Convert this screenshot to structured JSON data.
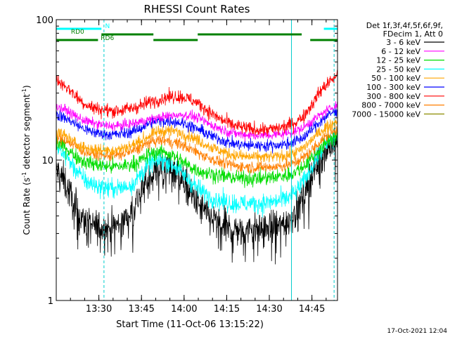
{
  "chart_data": {
    "type": "line",
    "title": "RHESSI Count Rates",
    "xlabel": "Start Time (11-Oct-06 13:15:22)",
    "ylabel_main": "Count Rate (s",
    "ylabel_sup1": "-1",
    "ylabel_mid": " detector segment",
    "ylabel_sup2": "-1",
    "ylabel_end": ")",
    "yscale": "log",
    "ylim": [
      1,
      100
    ],
    "y_ticks": [
      {
        "value": 1,
        "label": "1"
      },
      {
        "value": 10,
        "label": "10"
      },
      {
        "value": 100,
        "label": "100"
      }
    ],
    "x_range_minutes": [
      13.25,
      14.9
    ],
    "x_ticks": [
      {
        "value": 13.5,
        "label": "13:30"
      },
      {
        "value": 13.75,
        "label": "13:45"
      },
      {
        "value": 14.0,
        "label": "14:00"
      },
      {
        "value": 14.25,
        "label": "14:15"
      },
      {
        "value": 14.5,
        "label": "14:30"
      },
      {
        "value": 14.75,
        "label": "14:45"
      }
    ],
    "legend_header": [
      "Det 1f,3f,4f,5f,6f,9f,",
      "FDecim 1, Att 0"
    ],
    "timestamp": "17-Oct-2021 12:04",
    "time_hours": [
      13.25,
      13.3,
      13.35,
      13.4,
      13.45,
      13.5,
      13.55,
      13.6,
      13.65,
      13.7,
      13.75,
      13.8,
      13.85,
      13.9,
      13.95,
      14.0,
      14.05,
      14.1,
      14.15,
      14.2,
      14.25,
      14.3,
      14.35,
      14.4,
      14.45,
      14.5,
      14.55,
      14.6,
      14.65,
      14.7,
      14.75,
      14.8,
      14.85,
      14.9
    ],
    "series": [
      {
        "name": "3 - 6 keV",
        "color": "#000000",
        "noise": 0.09,
        "values": [
          8.5,
          7.0,
          5.0,
          3.8,
          3.4,
          3.3,
          3.3,
          3.4,
          3.7,
          4.5,
          6.0,
          7.8,
          8.8,
          9.0,
          8.5,
          7.0,
          5.5,
          4.5,
          3.9,
          3.5,
          3.3,
          3.2,
          3.2,
          3.2,
          3.2,
          3.3,
          3.4,
          3.6,
          4.2,
          5.5,
          8.0,
          10.5,
          12.5,
          14.0
        ]
      },
      {
        "name": "6 - 12 keV",
        "color": "#ff00ff",
        "noise": 0.025,
        "values": [
          24,
          23,
          21,
          19.5,
          18.5,
          18,
          17.5,
          17.5,
          17.8,
          18.2,
          18.8,
          19.5,
          20,
          20.5,
          21,
          21,
          20.5,
          19.5,
          18,
          17,
          16,
          15.5,
          15.2,
          15,
          15,
          15,
          15.2,
          15.5,
          16,
          17,
          19,
          21,
          23,
          25
        ]
      },
      {
        "name": "12 - 25 keV",
        "color": "#00dd00",
        "noise": 0.04,
        "values": [
          13.5,
          12.5,
          11,
          10,
          9.5,
          9.2,
          9.0,
          9.0,
          9.1,
          9.4,
          10,
          11,
          11.5,
          11.3,
          10.5,
          9.5,
          8.8,
          8.3,
          8.0,
          7.8,
          7.6,
          7.5,
          7.4,
          7.4,
          7.4,
          7.5,
          7.6,
          7.8,
          8.2,
          9.0,
          10.5,
          12,
          14,
          15
        ]
      },
      {
        "name": "25 - 50 keV",
        "color": "#00ffff",
        "noise": 0.05,
        "values": [
          12.5,
          11,
          9,
          7.5,
          6.8,
          6.5,
          6.3,
          6.3,
          6.4,
          6.8,
          8.0,
          9.5,
          10,
          9.8,
          9.0,
          7.8,
          6.8,
          6.0,
          5.5,
          5.2,
          5.0,
          4.9,
          4.9,
          4.9,
          4.9,
          5.0,
          5.1,
          5.3,
          5.8,
          7.0,
          9.0,
          11.5,
          13.5,
          15
        ]
      },
      {
        "name": "50 - 100 keV",
        "color": "#ffa500",
        "noise": 0.03,
        "values": [
          16,
          15,
          13.5,
          12.5,
          12,
          11.8,
          11.8,
          11.8,
          12.2,
          12.8,
          13.8,
          15,
          16,
          16.2,
          16,
          15.2,
          14.5,
          13.5,
          12.5,
          11.8,
          11.2,
          10.8,
          10.6,
          10.5,
          10.5,
          10.5,
          10.6,
          10.8,
          11.2,
          12.2,
          14,
          16,
          17.5,
          19
        ]
      },
      {
        "name": "100 - 300 keV",
        "color": "#0000ff",
        "noise": 0.03,
        "values": [
          21,
          20,
          18.5,
          17,
          16,
          15.5,
          15.2,
          15.2,
          15.5,
          16,
          17,
          18.5,
          19,
          19,
          18.8,
          18.2,
          17.2,
          16.2,
          15,
          14.2,
          13.5,
          13,
          12.8,
          12.7,
          12.7,
          12.7,
          12.8,
          13,
          13.5,
          14.5,
          16.5,
          19,
          21,
          23
        ]
      },
      {
        "name": "300 - 800 keV",
        "color": "#ff0000",
        "noise": 0.035,
        "values": [
          37,
          34,
          30,
          26,
          24,
          23,
          22.5,
          22.5,
          22.8,
          23.5,
          24.5,
          26,
          27,
          28,
          28.5,
          28,
          26.5,
          24.5,
          22,
          20,
          18.5,
          17.5,
          17,
          16.5,
          16.5,
          16.5,
          16.8,
          17.5,
          18.5,
          20.5,
          25,
          31,
          36,
          40
        ]
      },
      {
        "name": "800 - 7000 keV",
        "color": "#ff7f00",
        "noise": 0.03,
        "values": [
          14.5,
          14,
          12.8,
          11.8,
          11.2,
          10.9,
          10.8,
          10.8,
          11.1,
          11.6,
          12.4,
          13.4,
          13.8,
          13.7,
          13.3,
          12.6,
          11.8,
          11.0,
          10.3,
          9.8,
          9.4,
          9.1,
          9.0,
          8.9,
          8.9,
          8.9,
          9.0,
          9.2,
          9.6,
          10.4,
          11.8,
          13.6,
          15.2,
          16.5
        ]
      },
      {
        "name": "7000 - 15000 keV",
        "color": "#8b8b00",
        "noise": 0.02,
        "values": []
      }
    ],
    "attenuator_bars": [
      {
        "label": "N",
        "color": "#00ffff",
        "segments": [
          [
            13.25,
            13.515
          ],
          [
            14.82,
            14.9
          ]
        ]
      },
      {
        "label": "RD0",
        "color": "#008000",
        "segments": [
          [
            13.515,
            13.82
          ],
          [
            14.08,
            14.69
          ]
        ]
      },
      {
        "label": "RD6",
        "color": "#008000",
        "segments": [
          [
            13.25,
            13.495
          ],
          [
            13.82,
            14.08
          ],
          [
            14.74,
            14.9
          ]
        ]
      }
    ],
    "vertical_markers": [
      {
        "time": 13.53,
        "style": "dashed"
      },
      {
        "time": 14.63,
        "style": "solid"
      },
      {
        "time": 14.88,
        "style": "dashed"
      }
    ]
  }
}
